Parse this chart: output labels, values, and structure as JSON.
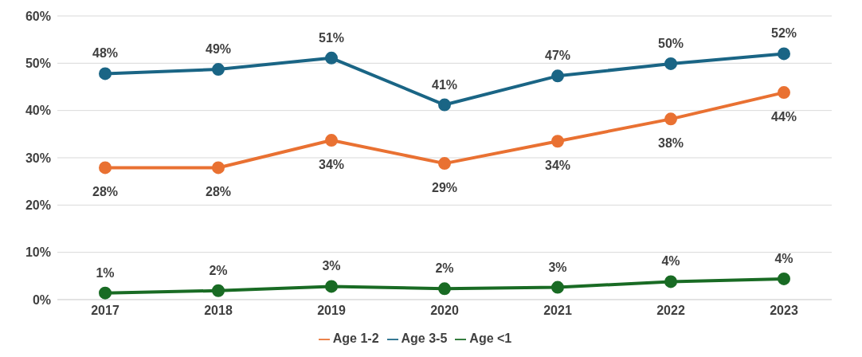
{
  "chart_data": {
    "type": "line",
    "categories": [
      "2017",
      "2018",
      "2019",
      "2020",
      "2021",
      "2022",
      "2023"
    ],
    "series": [
      {
        "name": "Age 3-5",
        "color": "#1a6585",
        "values": [
          47.8,
          48.7,
          51.1,
          41.2,
          47.3,
          49.9,
          52.0
        ],
        "value_labels": [
          "48%",
          "49%",
          "51%",
          "41%",
          "47%",
          "50%",
          "52%"
        ]
      },
      {
        "name": "Age 1-2",
        "color": "#e97132",
        "values": [
          27.9,
          27.9,
          33.7,
          28.8,
          33.5,
          38.2,
          43.8
        ],
        "value_labels": [
          "28%",
          "28%",
          "34%",
          "29%",
          "34%",
          "38%",
          "44%"
        ]
      },
      {
        "name": "Age <1",
        "color": "#196b24",
        "values": [
          1.4,
          1.9,
          2.8,
          2.3,
          2.6,
          3.8,
          4.4
        ],
        "value_labels": [
          "1%",
          "2%",
          "3%",
          "2%",
          "3%",
          "4%",
          "4%"
        ]
      }
    ],
    "ylim": [
      0,
      60
    ],
    "yticks": [
      {
        "value": 0,
        "label": "0%"
      },
      {
        "value": 10,
        "label": "10%"
      },
      {
        "value": 20,
        "label": "20%"
      },
      {
        "value": 30,
        "label": "30%"
      },
      {
        "value": 40,
        "label": "40%"
      },
      {
        "value": 50,
        "label": "50%"
      },
      {
        "value": 60,
        "label": "60%"
      }
    ],
    "grid": "y",
    "legend": "bottom",
    "marker": "circle",
    "line_style": "solid"
  }
}
